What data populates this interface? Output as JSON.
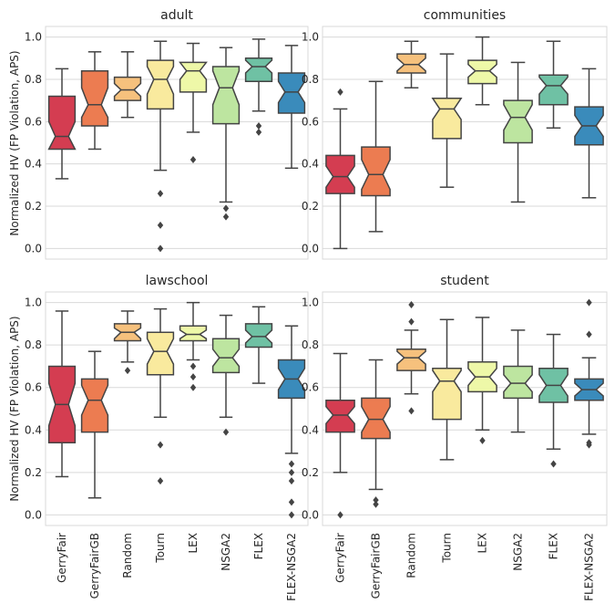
{
  "chart_data": {
    "type": "box",
    "categories": [
      "GerryFair",
      "GerryFairGB",
      "Random",
      "Tourn",
      "LEX",
      "NSGA2",
      "FLEX",
      "FLEX-NSGA2"
    ],
    "colors": [
      "#d43d51",
      "#ec7c51",
      "#f6c17d",
      "#f9ea9e",
      "#eef8a8",
      "#bde5a0",
      "#6fc1a4",
      "#3a8bbb"
    ],
    "ylabel": "Normalized HV (FP Violation, APS)",
    "yticks": [
      "0.0",
      "0.2",
      "0.4",
      "0.6",
      "0.8",
      "1.0"
    ],
    "ylim": [
      -0.05,
      1.05
    ],
    "grid": true,
    "panels": [
      {
        "title": "adult",
        "boxes": [
          {
            "whislo": 0.33,
            "q1": 0.47,
            "med": 0.53,
            "q3": 0.72,
            "whishi": 0.85,
            "ci": [
              0.46,
              0.6
            ],
            "fliers": []
          },
          {
            "whislo": 0.47,
            "q1": 0.58,
            "med": 0.68,
            "q3": 0.84,
            "whishi": 0.93,
            "ci": [
              0.62,
              0.76
            ],
            "fliers": []
          },
          {
            "whislo": 0.62,
            "q1": 0.7,
            "med": 0.75,
            "q3": 0.81,
            "whishi": 0.93,
            "ci": [
              0.72,
              0.78
            ],
            "fliers": []
          },
          {
            "whislo": 0.37,
            "q1": 0.66,
            "med": 0.8,
            "q3": 0.89,
            "whishi": 0.98,
            "ci": [
              0.73,
              0.86
            ],
            "fliers": [
              0.26,
              0.11,
              0.0
            ]
          },
          {
            "whislo": 0.55,
            "q1": 0.74,
            "med": 0.84,
            "q3": 0.88,
            "whishi": 0.97,
            "ci": [
              0.8,
              0.88
            ],
            "fliers": [
              0.42
            ]
          },
          {
            "whislo": 0.22,
            "q1": 0.59,
            "med": 0.76,
            "q3": 0.86,
            "whishi": 0.95,
            "ci": [
              0.68,
              0.84
            ],
            "fliers": [
              0.19,
              0.15
            ]
          },
          {
            "whislo": 0.65,
            "q1": 0.79,
            "med": 0.86,
            "q3": 0.9,
            "whishi": 0.99,
            "ci": [
              0.83,
              0.89
            ],
            "fliers": [
              0.58,
              0.55
            ]
          },
          {
            "whislo": 0.38,
            "q1": 0.64,
            "med": 0.74,
            "q3": 0.83,
            "whishi": 0.96,
            "ci": [
              0.69,
              0.79
            ],
            "fliers": []
          }
        ]
      },
      {
        "title": "communities",
        "boxes": [
          {
            "whislo": 0.0,
            "q1": 0.26,
            "med": 0.34,
            "q3": 0.44,
            "whishi": 0.66,
            "ci": [
              0.29,
              0.39
            ],
            "fliers": [
              0.74
            ]
          },
          {
            "whislo": 0.08,
            "q1": 0.25,
            "med": 0.35,
            "q3": 0.48,
            "whishi": 0.79,
            "ci": [
              0.28,
              0.42
            ],
            "fliers": []
          },
          {
            "whislo": 0.76,
            "q1": 0.83,
            "med": 0.87,
            "q3": 0.92,
            "whishi": 0.98,
            "ci": [
              0.84,
              0.9
            ],
            "fliers": []
          },
          {
            "whislo": 0.29,
            "q1": 0.52,
            "med": 0.66,
            "q3": 0.71,
            "whishi": 0.92,
            "ci": [
              0.61,
              0.71
            ],
            "fliers": []
          },
          {
            "whislo": 0.68,
            "q1": 0.78,
            "med": 0.84,
            "q3": 0.89,
            "whishi": 1.0,
            "ci": [
              0.81,
              0.87
            ],
            "fliers": []
          },
          {
            "whislo": 0.22,
            "q1": 0.5,
            "med": 0.62,
            "q3": 0.7,
            "whishi": 0.88,
            "ci": [
              0.56,
              0.68
            ],
            "fliers": []
          },
          {
            "whislo": 0.57,
            "q1": 0.68,
            "med": 0.77,
            "q3": 0.82,
            "whishi": 0.98,
            "ci": [
              0.73,
              0.81
            ],
            "fliers": []
          },
          {
            "whislo": 0.24,
            "q1": 0.49,
            "med": 0.58,
            "q3": 0.67,
            "whishi": 0.85,
            "ci": [
              0.53,
              0.63
            ],
            "fliers": []
          }
        ]
      },
      {
        "title": "lawschool",
        "boxes": [
          {
            "whislo": 0.18,
            "q1": 0.34,
            "med": 0.52,
            "q3": 0.7,
            "whishi": 0.96,
            "ci": [
              0.42,
              0.62
            ],
            "fliers": []
          },
          {
            "whislo": 0.08,
            "q1": 0.39,
            "med": 0.54,
            "q3": 0.64,
            "whishi": 0.77,
            "ci": [
              0.47,
              0.61
            ],
            "fliers": []
          },
          {
            "whislo": 0.72,
            "q1": 0.82,
            "med": 0.86,
            "q3": 0.9,
            "whishi": 0.96,
            "ci": [
              0.83,
              0.88
            ],
            "fliers": [
              0.68
            ]
          },
          {
            "whislo": 0.46,
            "q1": 0.66,
            "med": 0.77,
            "q3": 0.86,
            "whishi": 0.97,
            "ci": [
              0.71,
              0.83
            ],
            "fliers": [
              0.33,
              0.16
            ]
          },
          {
            "whislo": 0.73,
            "q1": 0.82,
            "med": 0.85,
            "q3": 0.89,
            "whishi": 1.0,
            "ci": [
              0.83,
              0.87
            ],
            "fliers": [
              0.7,
              0.65,
              0.6
            ]
          },
          {
            "whislo": 0.46,
            "q1": 0.67,
            "med": 0.74,
            "q3": 0.83,
            "whishi": 0.94,
            "ci": [
              0.7,
              0.78
            ],
            "fliers": [
              0.39
            ]
          },
          {
            "whislo": 0.62,
            "q1": 0.79,
            "med": 0.84,
            "q3": 0.9,
            "whishi": 0.98,
            "ci": [
              0.81,
              0.87
            ],
            "fliers": []
          },
          {
            "whislo": 0.29,
            "q1": 0.55,
            "med": 0.64,
            "q3": 0.73,
            "whishi": 0.89,
            "ci": [
              0.59,
              0.69
            ],
            "fliers": [
              0.24,
              0.2,
              0.16,
              0.06,
              0.0
            ]
          }
        ]
      },
      {
        "title": "student",
        "boxes": [
          {
            "whislo": 0.2,
            "q1": 0.39,
            "med": 0.47,
            "q3": 0.54,
            "whishi": 0.76,
            "ci": [
              0.43,
              0.51
            ],
            "fliers": [
              0.0
            ]
          },
          {
            "whislo": 0.12,
            "q1": 0.36,
            "med": 0.45,
            "q3": 0.55,
            "whishi": 0.73,
            "ci": [
              0.39,
              0.51
            ],
            "fliers": [
              0.07,
              0.05
            ]
          },
          {
            "whislo": 0.57,
            "q1": 0.68,
            "med": 0.74,
            "q3": 0.78,
            "whishi": 0.87,
            "ci": [
              0.71,
              0.77
            ],
            "fliers": [
              0.99,
              0.91,
              0.49
            ]
          },
          {
            "whislo": 0.26,
            "q1": 0.45,
            "med": 0.63,
            "q3": 0.69,
            "whishi": 0.92,
            "ci": [
              0.58,
              0.68
            ],
            "fliers": []
          },
          {
            "whislo": 0.4,
            "q1": 0.58,
            "med": 0.65,
            "q3": 0.72,
            "whishi": 0.93,
            "ci": [
              0.61,
              0.69
            ],
            "fliers": [
              0.35
            ]
          },
          {
            "whislo": 0.39,
            "q1": 0.55,
            "med": 0.62,
            "q3": 0.7,
            "whishi": 0.87,
            "ci": [
              0.58,
              0.66
            ],
            "fliers": []
          },
          {
            "whislo": 0.31,
            "q1": 0.53,
            "med": 0.61,
            "q3": 0.69,
            "whishi": 0.85,
            "ci": [
              0.56,
              0.66
            ],
            "fliers": [
              0.24
            ]
          },
          {
            "whislo": 0.38,
            "q1": 0.54,
            "med": 0.59,
            "q3": 0.64,
            "whishi": 0.74,
            "ci": [
              0.56,
              0.62
            ],
            "fliers": [
              1.0,
              0.85,
              0.34,
              0.33
            ]
          }
        ]
      }
    ]
  }
}
